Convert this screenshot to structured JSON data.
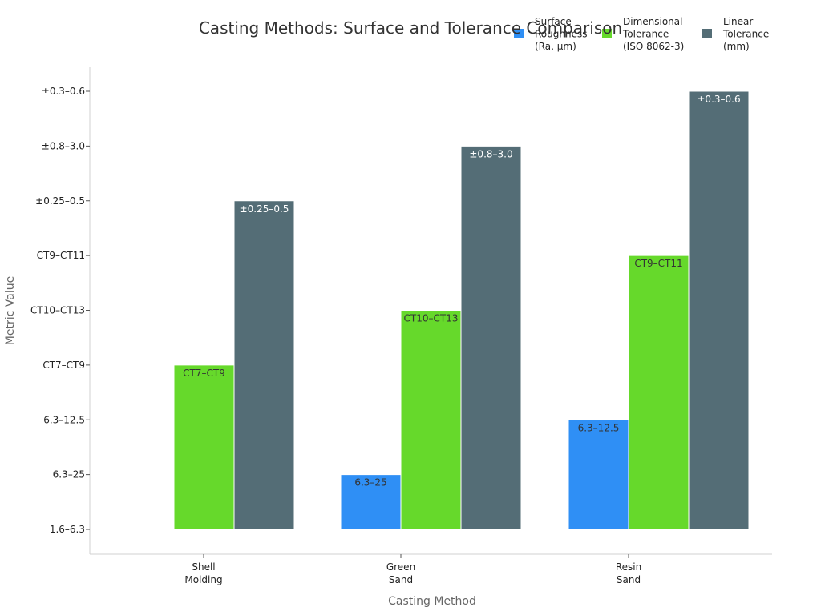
{
  "chart_data": {
    "type": "bar",
    "title": "Casting Methods: Surface and Tolerance Comparison",
    "xlabel": "Casting Method",
    "ylabel": "Metric Value",
    "categories": [
      "Shell\nMolding",
      "Green\nSand",
      "Resin\nSand"
    ],
    "y_tick_labels": [
      "1.6–6.3",
      "6.3–25",
      "6.3–12.5",
      "CT7–CT9",
      "CT10–CT13",
      "CT9–CT11",
      "±0.25–0.5",
      "±0.8–3.0",
      "±0.3–0.6"
    ],
    "ylim": [
      0,
      8
    ],
    "legend_position": "top-right",
    "series": [
      {
        "name": "Surface\nRoughness\n(Ra, µm)",
        "color": "#2f8ff5",
        "label_color": "#333333",
        "values": [
          0,
          1,
          2
        ],
        "labels": [
          "1.6–6.3",
          "6.3–25",
          "6.3–12.5"
        ]
      },
      {
        "name": "Dimensional\nTolerance\n(ISO 8062-3)",
        "color": "#66d92b",
        "label_color": "#333333",
        "values": [
          3,
          4,
          5
        ],
        "labels": [
          "CT7–CT9",
          "CT10–CT13",
          "CT9–CT11"
        ]
      },
      {
        "name": "Linear\nTolerance\n(mm)",
        "color": "#546d76",
        "label_color": "#ffffff",
        "values": [
          6,
          7,
          8
        ],
        "labels": [
          "±0.25–0.5",
          "±0.8–3.0",
          "±0.3–0.6"
        ]
      }
    ]
  }
}
